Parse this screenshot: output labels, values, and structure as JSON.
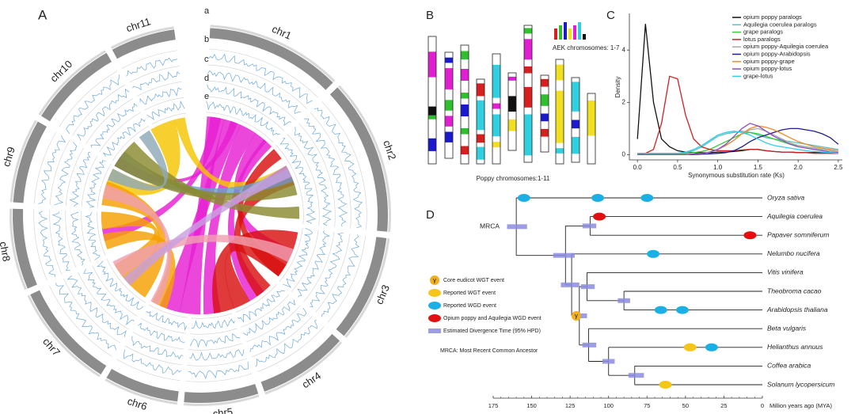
{
  "panel_labels": [
    "A",
    "B",
    "C",
    "D"
  ],
  "circos": {
    "chromosomes": [
      "chr1",
      "chr2",
      "chr3",
      "chr4",
      "chr5",
      "chr6",
      "chr7",
      "chr8",
      "chr9",
      "chr10",
      "chr11"
    ],
    "tracks": [
      "a",
      "b",
      "c",
      "d",
      "e"
    ]
  },
  "karyotype": {
    "legend": "AEK chromosomes: 1-7",
    "caption": "Poppy chromosomes:1-11",
    "colors": [
      "#d62020",
      "#2fbf2f",
      "#1a1acc",
      "#f2e020",
      "#e020d0",
      "#30d0e0",
      "#111111"
    ]
  },
  "chart_data": [
    {
      "type": "line",
      "ylabel": "Density",
      "xlabel": "Synonymous substitution rate (Ks)",
      "xlim": [
        -0.1,
        2.55
      ],
      "ylim": [
        -0.2,
        5.4
      ],
      "xticks": [
        {
          "value": 0,
          "label": "0.0"
        },
        0.5,
        {
          "value": 1,
          "label": "1.0"
        },
        1.5,
        {
          "value": 2,
          "label": "2.0"
        },
        2.5
      ],
      "yticks": [
        0,
        2,
        4
      ],
      "x": [
        0,
        0.1,
        0.2,
        0.3,
        0.4,
        0.5,
        0.6,
        0.7,
        0.8,
        0.9,
        1.0,
        1.1,
        1.2,
        1.3,
        1.4,
        1.5,
        1.6,
        1.7,
        1.8,
        1.9,
        2.0,
        2.1,
        2.2,
        2.3,
        2.4,
        2.5
      ],
      "series": [
        {
          "name": "opium poppy paralogs",
          "color": "#111111",
          "values": [
            0.6,
            5.0,
            2.0,
            0.6,
            0.3,
            0.15,
            0.1,
            0.08,
            0.08,
            0.08,
            0.1,
            0.1,
            0.12,
            0.15,
            0.2,
            0.2,
            0.15,
            0.12,
            0.1,
            0.1,
            0.08,
            0.08,
            0.08,
            0.08,
            0.05,
            0.05
          ]
        },
        {
          "name": "Aquilegia coerulea paralogs",
          "color": "#5fbfbf",
          "values": [
            0.05,
            0.05,
            0.05,
            0.05,
            0.05,
            0.05,
            0.08,
            0.15,
            0.3,
            0.5,
            0.7,
            0.8,
            0.85,
            0.9,
            0.85,
            0.75,
            0.65,
            0.6,
            0.55,
            0.5,
            0.45,
            0.4,
            0.35,
            0.3,
            0.25,
            0.2
          ]
        },
        {
          "name": "grape paralogs",
          "color": "#33cc33",
          "values": [
            0.05,
            0.05,
            0.05,
            0.05,
            0.05,
            0.05,
            0.05,
            0.08,
            0.12,
            0.2,
            0.35,
            0.5,
            0.65,
            0.8,
            0.85,
            0.8,
            0.7,
            0.6,
            0.5,
            0.4,
            0.35,
            0.3,
            0.25,
            0.2,
            0.15,
            0.1
          ]
        },
        {
          "name": "lotus paralogs",
          "color": "#cc2222",
          "values": [
            0,
            0.05,
            0.2,
            1.2,
            3.0,
            2.9,
            1.5,
            0.6,
            0.3,
            0.2,
            0.15,
            0.15,
            0.15,
            0.18,
            0.2,
            0.2,
            0.15,
            0.12,
            0.1,
            0.1,
            0.08,
            0.08,
            0.05,
            0.05,
            0.05,
            0.05
          ]
        },
        {
          "name": "opium poppy-Aquilegia coerulea",
          "color": "#aaaaaa",
          "values": [
            0,
            0,
            0,
            0,
            0,
            0,
            0,
            0.03,
            0.05,
            0.1,
            0.2,
            0.35,
            0.55,
            0.8,
            0.95,
            1.0,
            0.9,
            0.75,
            0.6,
            0.45,
            0.35,
            0.3,
            0.25,
            0.2,
            0.15,
            0.1
          ]
        },
        {
          "name": "opium poppy-Arabidopsis",
          "color": "#1f1f8f",
          "values": [
            0,
            0,
            0,
            0,
            0,
            0,
            0,
            0,
            0.02,
            0.03,
            0.05,
            0.08,
            0.15,
            0.3,
            0.5,
            0.65,
            0.75,
            0.85,
            0.95,
            1.0,
            1.0,
            0.95,
            0.9,
            0.8,
            0.65,
            0.4
          ]
        },
        {
          "name": "opium poppy-grape",
          "color": "#f08a30",
          "values": [
            0,
            0,
            0,
            0,
            0,
            0,
            0,
            0.02,
            0.05,
            0.1,
            0.2,
            0.35,
            0.55,
            0.8,
            1.0,
            1.1,
            1.05,
            0.95,
            0.8,
            0.65,
            0.5,
            0.4,
            0.3,
            0.25,
            0.2,
            0.15
          ]
        },
        {
          "name": "opium poppy-lotus",
          "color": "#8a4fc0",
          "values": [
            0,
            0,
            0,
            0,
            0,
            0,
            0,
            0.02,
            0.05,
            0.1,
            0.2,
            0.4,
            0.7,
            1.0,
            1.2,
            1.1,
            0.9,
            0.7,
            0.55,
            0.4,
            0.3,
            0.25,
            0.2,
            0.15,
            0.1,
            0.08
          ]
        },
        {
          "name": "grape-lotus",
          "color": "#33ccee",
          "values": [
            0.05,
            0.05,
            0.05,
            0.05,
            0.05,
            0.05,
            0.1,
            0.2,
            0.35,
            0.55,
            0.75,
            0.85,
            0.9,
            0.85,
            0.75,
            0.6,
            0.45,
            0.35,
            0.3,
            0.25,
            0.2,
            0.15,
            0.12,
            0.1,
            0.08,
            0.05
          ]
        }
      ]
    },
    {
      "type": "tree",
      "xlabel": "Million years ago (MYA)",
      "xlim": [
        175,
        0
      ],
      "xticks": [
        175,
        150,
        125,
        100,
        75,
        50,
        25,
        0
      ],
      "root_label": "MRCA",
      "gamma_symbol": "γ",
      "note": "MRCA: Most Recent Common Ancestor",
      "legend": [
        {
          "kind": "gamma",
          "label": "Core eudicot WGT event"
        },
        {
          "kind": "wgt",
          "label": "Reported WGT event"
        },
        {
          "kind": "wgd",
          "label": "Reported WGD event"
        },
        {
          "kind": "opium",
          "label": "Opium poppy and Aquilegia WGD event"
        },
        {
          "kind": "hpd",
          "label": "Estimated Divergence Time (95% HPD)"
        }
      ],
      "tree": {
        "time": 160,
        "hpd": [
          166,
          153
        ],
        "children": [
          {
            "name": "Oryza sativa",
            "events": [
              {
                "kind": "wgd",
                "time": 155
              },
              {
                "kind": "wgd",
                "time": 107
              },
              {
                "kind": "wgd",
                "time": 75
              }
            ]
          },
          {
            "time": 128,
            "hpd": [
              136,
              122
            ],
            "children": [
              {
                "time": 112,
                "hpd": [
                  117,
                  108
                ],
                "children": [
                  {
                    "name": "Aquilegia coerulea",
                    "events": [
                      {
                        "kind": "opium",
                        "time": 106
                      }
                    ]
                  },
                  {
                    "name": "Papaver somniferum",
                    "events": [
                      {
                        "kind": "opium",
                        "time": 8
                      }
                    ]
                  }
                ]
              },
              {
                "time": 124,
                "hpd": [
                  131,
                  119
                ],
                "children": [
                  {
                    "name": "Nelumbo nucifera",
                    "events": [
                      {
                        "kind": "wgd",
                        "time": 71
                      }
                    ]
                  },
                  {
                    "time": 119,
                    "hpd": [
                      123,
                      114
                    ],
                    "events": [
                      {
                        "kind": "gamma",
                        "time": 121
                      }
                    ],
                    "children": [
                      {
                        "time": 114,
                        "hpd": [
                          118,
                          109
                        ],
                        "children": [
                          {
                            "name": "Vitis vinifera",
                            "events": []
                          },
                          {
                            "time": 90,
                            "hpd": [
                              94,
                              86
                            ],
                            "children": [
                              {
                                "name": "Theobroma cacao",
                                "events": []
                              },
                              {
                                "name": "Arabidopsis thaliana",
                                "events": [
                                  {
                                    "kind": "wgd",
                                    "time": 66
                                  },
                                  {
                                    "kind": "wgd",
                                    "time": 52
                                  }
                                ]
                              }
                            ]
                          }
                        ]
                      },
                      {
                        "time": 113,
                        "hpd": [
                          117,
                          108
                        ],
                        "children": [
                          {
                            "name": "Beta vulgaris",
                            "events": []
                          },
                          {
                            "time": 100,
                            "hpd": [
                              104,
                              96
                            ],
                            "children": [
                              {
                                "name": "Helianthus annuus",
                                "events": [
                                  {
                                    "kind": "wgt",
                                    "time": 47
                                  },
                                  {
                                    "kind": "wgd",
                                    "time": 33
                                  }
                                ]
                              },
                              {
                                "time": 83,
                                "hpd": [
                                  87,
                                  77
                                ],
                                "children": [
                                  {
                                    "name": "Coffea arabica",
                                    "events": []
                                  },
                                  {
                                    "name": "Solanum lycopersicum",
                                    "events": [
                                      {
                                        "kind": "wgt",
                                        "time": 63
                                      }
                                    ]
                                  }
                                ]
                              }
                            ]
                          }
                        ]
                      }
                    ]
                  }
                ]
              }
            ]
          }
        ]
      }
    }
  ]
}
